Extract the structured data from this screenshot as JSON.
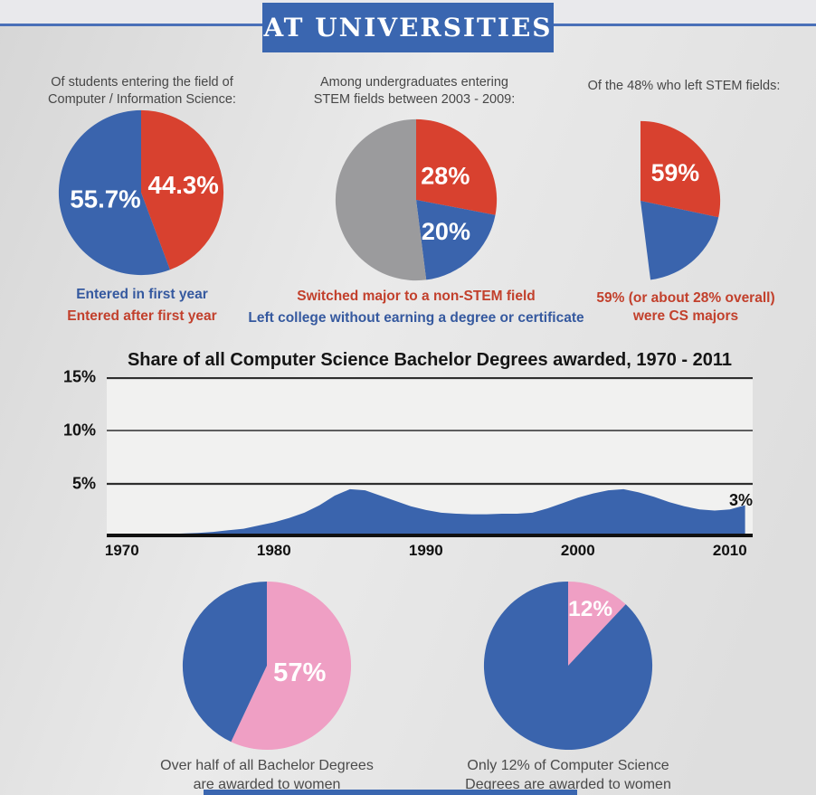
{
  "header": {
    "title": "AT UNIVERSITIES"
  },
  "colors": {
    "blue": "#3a64ad",
    "red": "#d8412f",
    "gray": "#9b9b9d",
    "pink": "#ef9fc4",
    "caption_blue": "#35599f",
    "caption_red": "#c2402c",
    "dark_text": "#4a4a4a",
    "header_bg": "#3a66b0",
    "accent_line": "#4a70b8"
  },
  "chart_data": [
    {
      "id": "pie-entering-cs",
      "type": "pie",
      "title": "Of students entering the field of\nComputer / Information Science:",
      "slices": [
        {
          "label": "Entered after first year",
          "value": 44.3,
          "text": "44.3%",
          "color": "red",
          "label_r": 0.52
        },
        {
          "label": "Entered in first year",
          "value": 55.7,
          "text": "55.7%",
          "color": "blue",
          "label_r": 0.44
        }
      ],
      "captions": [
        {
          "text": "Entered in first year",
          "color": "blue"
        },
        {
          "text": "Entered after first year",
          "color": "red"
        }
      ]
    },
    {
      "id": "pie-stem-outcomes",
      "type": "pie",
      "title": "Among undergraduates entering\nSTEM fields between 2003 - 2009:",
      "slices": [
        {
          "label": "Switched major to a non-STEM field",
          "value": 28,
          "text": "28%",
          "color": "red",
          "label_r": 0.47
        },
        {
          "label": "Left college without earning a degree or certificate",
          "value": 20,
          "text": "20%",
          "color": "blue",
          "label_r": 0.54
        },
        {
          "value": 52,
          "color": "gray"
        }
      ],
      "captions": [
        {
          "text": "Switched major to a non-STEM field",
          "color": "red"
        },
        {
          "text": "Left college without earning a degree or certificate",
          "color": "blue"
        }
      ]
    },
    {
      "id": "pie-left-stem-cs-majors",
      "type": "pie",
      "coverage_pct": 48,
      "title": "Of the 48% who left STEM fields:",
      "slices": [
        {
          "label": "were CS majors",
          "value": 59,
          "text": "59%",
          "color": "red",
          "label_r": 0.56
        },
        {
          "value": 41,
          "color": "blue"
        }
      ],
      "captions": [
        {
          "text": "59% (or about 28% overall)\nwere CS majors",
          "color": "red"
        }
      ]
    },
    {
      "id": "area-cs-degree-share",
      "type": "area",
      "title": "Share of all Computer Science Bachelor Degrees awarded, 1970 - 2011",
      "y_tick_labels": [
        "15%",
        "10%",
        "5%"
      ],
      "y_axis_max": 15,
      "gridlines_pct": [
        5,
        10,
        15
      ],
      "x_ticks": [
        1970,
        1980,
        1990,
        2000,
        2010
      ],
      "x_range": [
        1969,
        2011.5
      ],
      "end_label": "3%",
      "points": [
        [
          1970,
          0.15
        ],
        [
          1971,
          0.2
        ],
        [
          1972,
          0.25
        ],
        [
          1973,
          0.3
        ],
        [
          1974,
          0.35
        ],
        [
          1975,
          0.4
        ],
        [
          1976,
          0.5
        ],
        [
          1977,
          0.65
        ],
        [
          1978,
          0.8
        ],
        [
          1979,
          1.1
        ],
        [
          1980,
          1.4
        ],
        [
          1981,
          1.8
        ],
        [
          1982,
          2.3
        ],
        [
          1983,
          3.0
        ],
        [
          1984,
          3.9
        ],
        [
          1985,
          4.5
        ],
        [
          1986,
          4.4
        ],
        [
          1987,
          3.9
        ],
        [
          1988,
          3.4
        ],
        [
          1989,
          2.9
        ],
        [
          1990,
          2.55
        ],
        [
          1991,
          2.3
        ],
        [
          1992,
          2.2
        ],
        [
          1993,
          2.15
        ],
        [
          1994,
          2.15
        ],
        [
          1995,
          2.2
        ],
        [
          1996,
          2.2
        ],
        [
          1997,
          2.3
        ],
        [
          1998,
          2.7
        ],
        [
          1999,
          3.2
        ],
        [
          2000,
          3.7
        ],
        [
          2001,
          4.1
        ],
        [
          2002,
          4.4
        ],
        [
          2003,
          4.5
        ],
        [
          2004,
          4.2
        ],
        [
          2005,
          3.8
        ],
        [
          2006,
          3.3
        ],
        [
          2007,
          2.9
        ],
        [
          2008,
          2.6
        ],
        [
          2009,
          2.5
        ],
        [
          2010,
          2.6
        ],
        [
          2011,
          3.0
        ]
      ]
    },
    {
      "id": "pie-women-bachelor-degrees",
      "type": "pie",
      "slices": [
        {
          "label": "awarded to women",
          "value": 57,
          "text": "57%",
          "color": "pink",
          "label_r": 0.4,
          "label_size": 31
        },
        {
          "value": 43,
          "color": "blue"
        }
      ],
      "captions": [
        {
          "text": "Over half of all Bachelor Degrees\nare awarded to women",
          "color": "dark"
        }
      ]
    },
    {
      "id": "pie-women-cs-degrees",
      "type": "pie",
      "slices": [
        {
          "label": "awarded to women",
          "value": 12,
          "text": "12%",
          "color": "pink",
          "label_r": 0.72,
          "label_size": 26
        },
        {
          "value": 88,
          "color": "blue"
        }
      ],
      "captions": [
        {
          "text": "Only 12% of Computer Science\nDegrees are awarded to women",
          "color": "dark"
        }
      ]
    }
  ]
}
